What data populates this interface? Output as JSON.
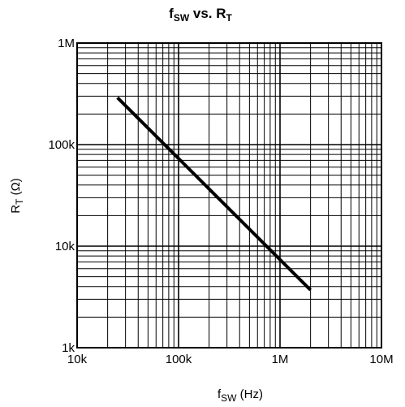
{
  "chart_data": {
    "type": "line",
    "title": {
      "main": "f",
      "main_sub": "SW",
      "mid": " vs. R",
      "end_sub": "T"
    },
    "xlabel": {
      "main": "f",
      "sub": "SW",
      "rest": " (Hz)"
    },
    "ylabel": {
      "main": "R",
      "sub": "T",
      "rest": " (Ω)"
    },
    "xscale": "log",
    "yscale": "log",
    "xlim": [
      10000,
      10000000
    ],
    "ylim": [
      1000,
      1000000
    ],
    "xticks": [
      {
        "value": 10000,
        "label": "10k"
      },
      {
        "value": 100000,
        "label": "100k"
      },
      {
        "value": 1000000,
        "label": "1M"
      },
      {
        "value": 10000000,
        "label": "10M"
      }
    ],
    "yticks": [
      {
        "value": 1000,
        "label": "1k"
      },
      {
        "value": 10000,
        "label": "10k"
      },
      {
        "value": 100000,
        "label": "100k"
      },
      {
        "value": 1000000,
        "label": "1M"
      }
    ],
    "grid": true,
    "series": [
      {
        "x": [
          25000,
          2000000
        ],
        "y": [
          290000,
          3700
        ]
      }
    ],
    "colors": {
      "line": "#000000",
      "grid": "#000000"
    }
  }
}
